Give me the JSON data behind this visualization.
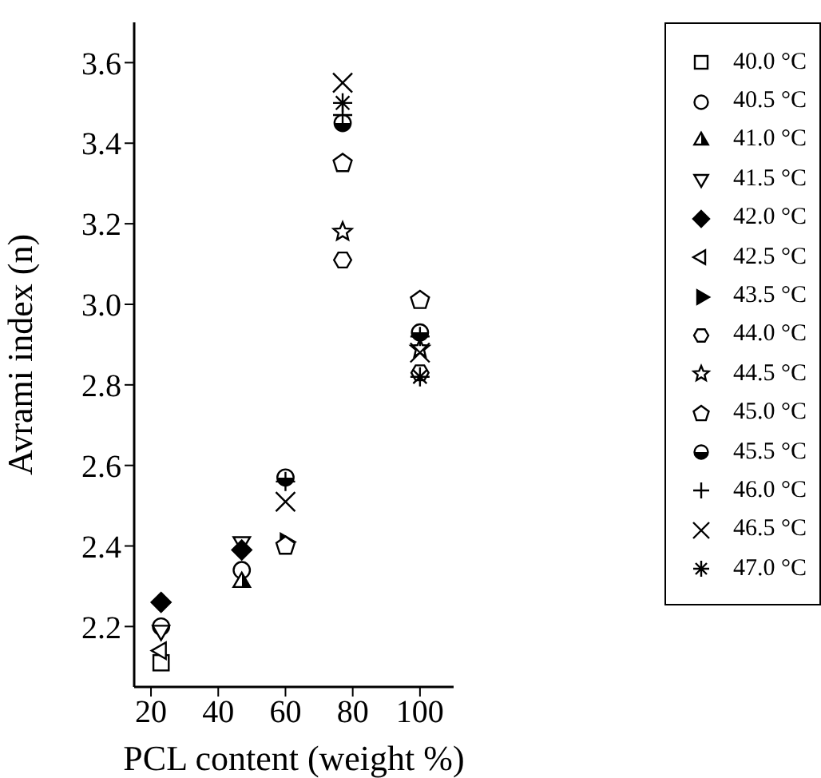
{
  "chart_data": {
    "type": "scatter",
    "xlabel": "PCL content (weight %)",
    "ylabel": "Avrami index (n)",
    "xlim": [
      15,
      110
    ],
    "xticks": [
      20,
      40,
      60,
      80,
      100
    ],
    "ylim": [
      2.05,
      3.7
    ],
    "yticks": [
      2.2,
      2.4,
      2.6,
      2.8,
      {
        "value": 3,
        "label": "3.0"
      },
      3.2,
      3.4,
      3.6
    ],
    "legend": "top right",
    "series": [
      {
        "name": "40.0 °C",
        "color": "#000000",
        "x": [
          23
        ],
        "values": [
          2.11
        ]
      },
      {
        "name": "40.5 °C",
        "color": "#000000",
        "x": [
          23,
          47
        ],
        "values": [
          2.2,
          2.34
        ]
      },
      {
        "name": "41.0 °C",
        "color": "#000000",
        "x": [
          47
        ],
        "values": [
          2.31
        ]
      },
      {
        "name": "41.5 °C",
        "color": "#000000",
        "x": [
          23,
          47
        ],
        "values": [
          2.19,
          2.41
        ]
      },
      {
        "name": "42.0 °C",
        "color": "#000000",
        "x": [
          23,
          47
        ],
        "values": [
          2.26,
          2.39
        ]
      },
      {
        "name": "42.5 °C",
        "color": "#000000",
        "x": [
          23
        ],
        "values": [
          2.14
        ]
      },
      {
        "name": "43.5 °C",
        "color": "#000000",
        "x": [
          60
        ],
        "values": [
          2.41
        ]
      },
      {
        "name": "44.0 °C",
        "color": "#000000",
        "x": [
          77,
          100
        ],
        "values": [
          3.11,
          2.83
        ]
      },
      {
        "name": "44.5 °C",
        "color": "#000000",
        "x": [
          77,
          100
        ],
        "values": [
          3.18,
          2.89
        ]
      },
      {
        "name": "45.0 °C",
        "color": "#000000",
        "x": [
          60,
          77,
          100
        ],
        "values": [
          2.4,
          3.35,
          3.01
        ]
      },
      {
        "name": "45.5 °C",
        "color": "#000000",
        "x": [
          60,
          77,
          100
        ],
        "values": [
          2.57,
          3.45,
          2.93
        ]
      },
      {
        "name": "46.0 °C",
        "color": "#000000",
        "x": [
          60,
          77,
          100
        ],
        "values": [
          2.56,
          3.47,
          2.92
        ]
      },
      {
        "name": "46.5 °C",
        "color": "#000000",
        "x": [
          60,
          77,
          100
        ],
        "values": [
          2.51,
          3.55,
          2.88
        ]
      },
      {
        "name": "47.0 °C",
        "color": "#000000",
        "x": [
          77,
          100
        ],
        "values": [
          3.5,
          2.82
        ]
      }
    ]
  }
}
